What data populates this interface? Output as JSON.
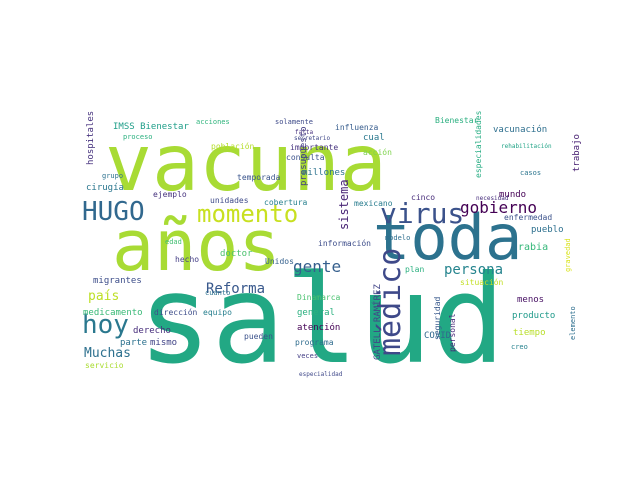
{
  "words": [
    {
      "text": "salud",
      "color": "#22a884"
    },
    {
      "text": "vacuna",
      "color": "#a8db34"
    },
    {
      "text": "años",
      "color": "#a8db34"
    },
    {
      "text": "toda",
      "color": "#2c728e"
    },
    {
      "text": "momento",
      "color": "#c8e020"
    },
    {
      "text": "virus",
      "color": "#3b528b"
    },
    {
      "text": "HUGO",
      "color": "#31688e"
    },
    {
      "text": "hoy",
      "color": "#2a788e"
    },
    {
      "text": "médico",
      "color": "#3e4989"
    },
    {
      "text": "gobierno",
      "color": "#440154"
    },
    {
      "text": "gente",
      "color": "#355f8d"
    },
    {
      "text": "persona",
      "color": "#25848e"
    },
    {
      "text": "Reforma",
      "color": "#38588c"
    },
    {
      "text": "Muchas",
      "color": "#2d708e"
    },
    {
      "text": "país",
      "color": "#bddf26"
    },
    {
      "text": "sistema",
      "color": "#482475"
    },
    {
      "text": "IMSS Bienestar",
      "color": "#1f9e89"
    },
    {
      "text": "presupuesto",
      "color": "#433e85"
    },
    {
      "text": "GATELL RAMÍREZ",
      "color": "#414487"
    },
    {
      "text": "vacunación",
      "color": "#2e6f8e"
    },
    {
      "text": "hospitales",
      "color": "#46327e"
    },
    {
      "text": "cirugía",
      "color": "#2a768e"
    },
    {
      "text": "población",
      "color": "#b5de2b"
    },
    {
      "text": "temporada",
      "color": "#3a548c"
    },
    {
      "text": "Bienestar",
      "color": "#29af7f"
    },
    {
      "text": "especialidades",
      "color": "#25ac82"
    },
    {
      "text": "rehabilitación",
      "color": "#20a386"
    },
    {
      "text": "influenza",
      "color": "#365c8d"
    },
    {
      "text": "consulta",
      "color": "#3b528b"
    },
    {
      "text": "millones",
      "color": "#2c738e"
    },
    {
      "text": "importante",
      "color": "#46337f"
    },
    {
      "text": "secretario",
      "color": "#3f4788"
    },
    {
      "text": "cual",
      "color": "#2a788e"
    },
    {
      "text": "acción",
      "color": "#7fd34e"
    },
    {
      "text": "mundo",
      "color": "#440154"
    },
    {
      "text": "enfermedad",
      "color": "#3b528b"
    },
    {
      "text": "pueblo",
      "color": "#2d708e"
    },
    {
      "text": "rabia",
      "color": "#35b779"
    },
    {
      "text": "situación",
      "color": "#c2df23"
    },
    {
      "text": "mexicano",
      "color": "#287c8e"
    },
    {
      "text": "cinco",
      "color": "#472c7a"
    },
    {
      "text": "información",
      "color": "#3d4d8a"
    },
    {
      "text": "Unidos",
      "color": "#34608d"
    },
    {
      "text": "doctor",
      "color": "#4ac16d"
    },
    {
      "text": "unidades",
      "color": "#3e4a89"
    },
    {
      "text": "migrantes",
      "color": "#3d4e8a"
    },
    {
      "text": "medicamento",
      "color": "#39b977"
    },
    {
      "text": "Dinamarca",
      "color": "#48c16e"
    },
    {
      "text": "general",
      "color": "#2ab07f"
    },
    {
      "text": "atención",
      "color": "#440154"
    },
    {
      "text": "programa",
      "color": "#2f6c8e"
    },
    {
      "text": "mismo",
      "color": "#414487"
    },
    {
      "text": "parte",
      "color": "#2c718e"
    },
    {
      "text": "servicio",
      "color": "#aadc32"
    },
    {
      "text": "derecho",
      "color": "#472d7b"
    },
    {
      "text": "dirección",
      "color": "#3d4d8a"
    },
    {
      "text": "cuánto",
      "color": "#2c728e"
    },
    {
      "text": "equipo",
      "color": "#277f8e"
    },
    {
      "text": "personal",
      "color": "#482979"
    },
    {
      "text": "seguridad",
      "color": "#38598c"
    },
    {
      "text": "COVID",
      "color": "#31688e"
    },
    {
      "text": "producto",
      "color": "#1f9a8a"
    },
    {
      "text": "menos",
      "color": "#471063"
    },
    {
      "text": "tiempo",
      "color": "#b8de29"
    },
    {
      "text": "creo",
      "color": "#26828e"
    },
    {
      "text": "pueden",
      "color": "#3b528b"
    },
    {
      "text": "trabajo",
      "color": "#482173"
    },
    {
      "text": "proceso",
      "color": "#2ab07f"
    },
    {
      "text": "ejemplo",
      "color": "#46327e"
    },
    {
      "text": "necesidad",
      "color": "#472e7c"
    },
    {
      "text": "hecho",
      "color": "#433d84"
    },
    {
      "text": "edad",
      "color": "#42be71"
    },
    {
      "text": "modelo",
      "color": "#2e6e8e"
    },
    {
      "text": "elemento",
      "color": "#2e6f8e"
    },
    {
      "text": "grupo",
      "color": "#2c718e"
    },
    {
      "text": "cobertura",
      "color": "#27808e"
    },
    {
      "text": "solamente",
      "color": "#3e4a89"
    },
    {
      "text": "acciones",
      "color": "#2fb47c"
    },
    {
      "text": "falta",
      "color": "#46307e"
    },
    {
      "text": "casos",
      "color": "#2b758e"
    },
    {
      "text": "plan",
      "color": "#2ab07f"
    },
    {
      "text": "veces",
      "color": "#433e85"
    },
    {
      "text": "gravedad",
      "color": "#d8e219"
    },
    {
      "text": "especialidad",
      "color": "#3f4889"
    }
  ]
}
